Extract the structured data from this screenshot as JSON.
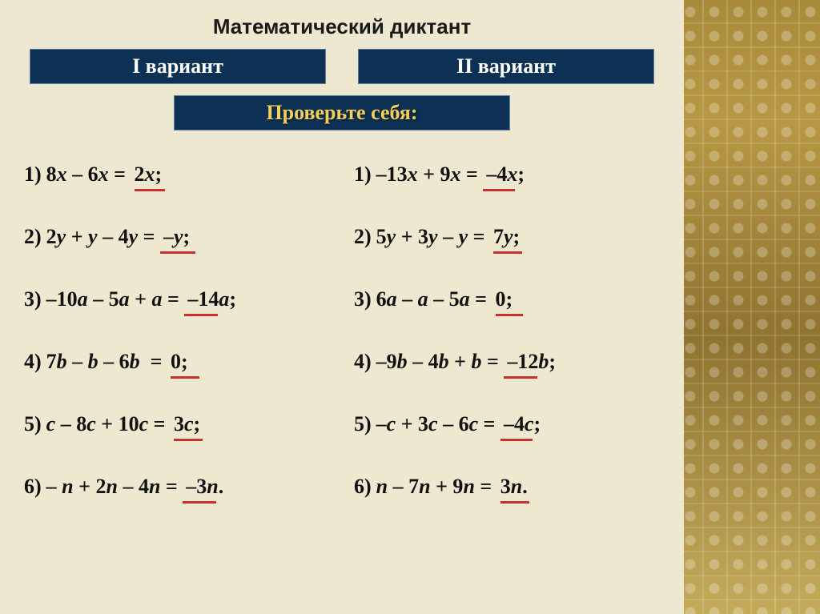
{
  "title": "Математический диктант",
  "variant1_label": "I вариант",
  "variant2_label": "II вариант",
  "check_label": "Проверьте себя:",
  "colors": {
    "background": "#ede8cf",
    "header_bg": "#0d3155",
    "header_text": "#ffffff",
    "check_text": "#f5cf5a",
    "underline": "#c9302c",
    "text": "#111111",
    "side_pattern_base": "#a88b3a"
  },
  "font_sizes": {
    "title": 26,
    "tab": 26,
    "row": 26
  },
  "left": [
    {
      "n": "1)",
      "expr": "8<i>x</i> – 6<i>x</i> =",
      "ans": "2<i>x</i>;",
      "uwidth": 38
    },
    {
      "n": "2)",
      "expr": "2<i>y</i> + <i>y</i> – 4<i>y</i> =",
      "ans": "–<i>y</i>;",
      "uwidth": 44,
      "uclass": "inset"
    },
    {
      "n": "3)",
      "expr": "–10<i>a</i> – 5<i>a</i> + <i>a</i> =",
      "ans": "–14<i>a</i>;",
      "uwidth": 42,
      "uclass": "inset"
    },
    {
      "n": "4)",
      "expr": "7<i>b</i> – <i>b</i> – 6<i>b</i>&nbsp;&nbsp;=",
      "ans": "0;",
      "uwidth": 36
    },
    {
      "n": "5)",
      "expr": "<i>c</i> – 8<i>c</i> + 10<i>c</i> =",
      "ans": "3<i>c</i>;",
      "uwidth": 36
    },
    {
      "n": "6)",
      "expr": "– <i>n</i> + 2<i>n</i> – 4<i>n</i> =",
      "ans": "–3<i>n</i>.",
      "uwidth": 42,
      "uclass": "inset"
    }
  ],
  "right": [
    {
      "n": "1)",
      "expr": "–13<i>x</i> + 9<i>x</i> =",
      "ans": "–4<i>x</i>;",
      "uwidth": 40,
      "uclass": "inset"
    },
    {
      "n": "2)",
      "expr": "5<i>y</i> + 3<i>y</i> – <i>y</i> =",
      "ans": "7<i>y</i>;",
      "uwidth": 36
    },
    {
      "n": "3)",
      "expr": "6<i>a</i> – <i>a</i> – 5<i>a</i> =",
      "ans": "0;",
      "uwidth": 34
    },
    {
      "n": "4)",
      "expr": "–9<i>b</i> – 4<i>b</i> + <i>b</i> =",
      "ans": "–12<i>b</i>;",
      "uwidth": 42,
      "uclass": "inset"
    },
    {
      "n": "5)",
      "expr": "–<i>c</i> + 3<i>c</i> – 6<i>c</i> =",
      "ans": "–4<i>c</i>;",
      "uwidth": 40,
      "uclass": "inset"
    },
    {
      "n": "6)",
      "expr": "<i>n</i> – 7<i>n</i> + 9<i>n</i> =",
      "ans": "3<i>n</i>.",
      "uwidth": 36
    }
  ]
}
